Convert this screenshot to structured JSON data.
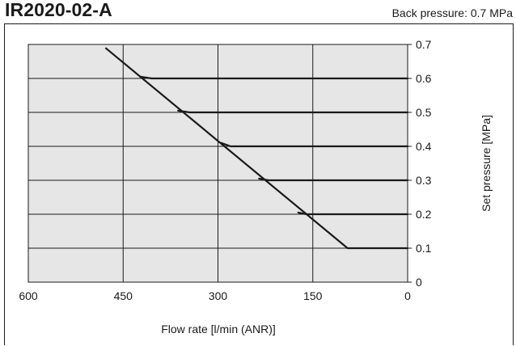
{
  "header": {
    "title": "IR2020-02-A",
    "subtitle": "Back pressure: 0.7 MPa"
  },
  "chart_data": {
    "type": "line",
    "title": "IR2020-02-A",
    "subtitle": "Back pressure: 0.7 MPa",
    "xlabel": "Flow rate [l/min (ANR)]",
    "ylabel": "Set pressure [MPa]",
    "xlim": [
      600,
      0
    ],
    "ylim": [
      0,
      0.7
    ],
    "x_reversed": true,
    "x_ticks": [
      600,
      450,
      300,
      150,
      0
    ],
    "y_ticks": [
      0,
      0.1,
      0.2,
      0.3,
      0.4,
      0.5,
      0.6,
      0.7
    ],
    "x_tick_labels": [
      "600",
      "450",
      "300",
      "150",
      "0"
    ],
    "y_tick_labels": [
      "0",
      "0.1",
      "0.2",
      "0.3",
      "0.4",
      "0.5",
      "0.6",
      "0.7"
    ],
    "y_axis_position": "right",
    "grid": true,
    "plot_background": "#e6e6e6",
    "line_color": "#1a1a1a",
    "envelope": [
      [
        478,
        0.69
      ],
      [
        95,
        0.1
      ]
    ],
    "series": [
      {
        "set_pressure": 0.6,
        "values": [
          [
            423,
            0.605
          ],
          [
            405,
            0.6
          ],
          [
            0,
            0.6
          ]
        ]
      },
      {
        "set_pressure": 0.5,
        "values": [
          [
            363,
            0.505
          ],
          [
            345,
            0.5
          ],
          [
            0,
            0.5
          ]
        ]
      },
      {
        "set_pressure": 0.4,
        "values": [
          [
            295,
            0.41
          ],
          [
            280,
            0.4
          ],
          [
            0,
            0.4
          ]
        ]
      },
      {
        "set_pressure": 0.3,
        "values": [
          [
            235,
            0.305
          ],
          [
            220,
            0.3
          ],
          [
            0,
            0.3
          ]
        ]
      },
      {
        "set_pressure": 0.2,
        "values": [
          [
            173,
            0.205
          ],
          [
            160,
            0.2
          ],
          [
            0,
            0.2
          ]
        ]
      },
      {
        "set_pressure": 0.1,
        "values": [
          [
            95,
            0.1
          ],
          [
            0,
            0.1
          ]
        ]
      }
    ]
  }
}
